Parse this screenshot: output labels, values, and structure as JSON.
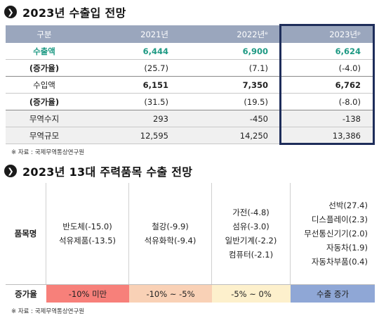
{
  "section1": {
    "title": "2023년 수출입 전망"
  },
  "table1": {
    "headers": [
      "구분",
      "2021년",
      "2022년ᵉ",
      "2023년ᵖ"
    ],
    "rows": [
      {
        "label": "수출액",
        "values": [
          "6,444",
          "6,900",
          "6,624"
        ],
        "style": "green"
      },
      {
        "label": "(증가율)",
        "values": [
          "(25.7)",
          "(7.1)",
          "(-4.0)"
        ],
        "style": "bold-label"
      },
      {
        "label": "수입액",
        "values": [
          "6,151",
          "7,350",
          "6,762"
        ],
        "style": "bold"
      },
      {
        "label": "(증가율)",
        "values": [
          "(31.5)",
          "(19.5)",
          "(-8.0)"
        ],
        "style": "bold-label"
      },
      {
        "label": "무역수지",
        "values": [
          "293",
          "-450",
          "-138"
        ],
        "style": "shade"
      },
      {
        "label": "무역규모",
        "values": [
          "12,595",
          "14,250",
          "13,386"
        ],
        "style": "shade"
      }
    ]
  },
  "note1": "※ 자료 : 국제무역통상연구원",
  "section2": {
    "title": "2023년 13대 주력품목 수출 전망"
  },
  "table2": {
    "row_label": "품목명",
    "groups": [
      [
        "반도체(-15.0)",
        "석유제품(-13.5)"
      ],
      [
        "철강(-9.9)",
        "석유화학(-9.4)"
      ],
      [
        "가전(-4.8)",
        "섬유(-3.0)",
        "일반기계(-2.2)",
        "컴퓨터(-2.1)"
      ],
      [
        "선박(27.4)",
        "디스플레이(2.3)",
        "무선통신기기(2.0)",
        "자동차(1.9)",
        "자동차부품(0.4)"
      ]
    ],
    "foot_label": "증가율",
    "foot": [
      "-10% 미만",
      "-10% ~ -5%",
      "-5% ~ 0%",
      "수출 증가"
    ]
  },
  "note2": "※ 자료 : 국제무역통상연구원",
  "colors": {
    "header": "#9aa6bd",
    "highlight_border": "#1e2d5a",
    "green_text": "#1f9a84",
    "red": "#f7807a",
    "peach": "#f9d1b6",
    "cream": "#fdf0cc",
    "blue": "#8fa7d6"
  }
}
